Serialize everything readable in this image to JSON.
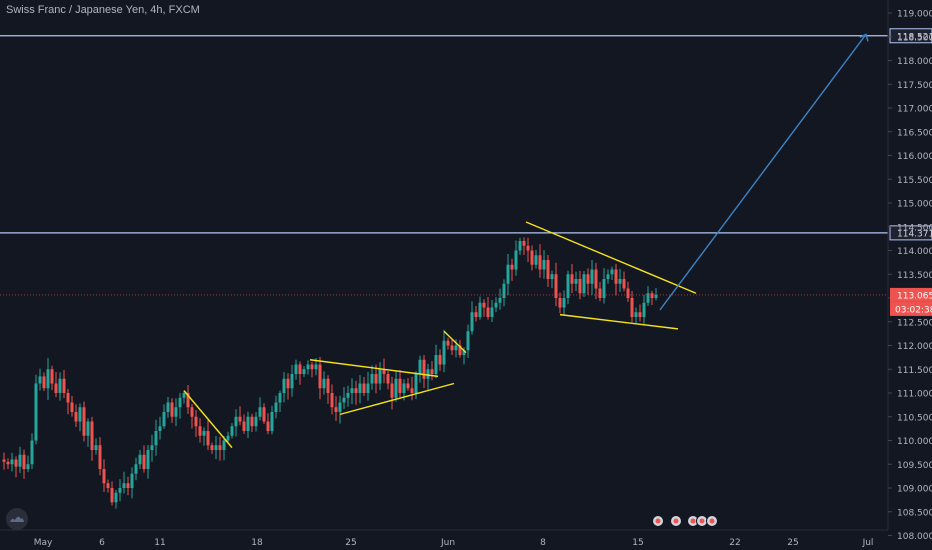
{
  "header": {
    "title": "Swiss Franc / Japanese Yen, 4h, FXCM"
  },
  "badges": {
    "price": "113.065",
    "countdown": "03:02:38"
  },
  "colors": {
    "bg": "#131722",
    "up": "#26a69a",
    "down": "#ef5350",
    "hline": "#b2c5f2",
    "trend": "#f5e31a",
    "arrow": "#3d85c6",
    "axis_text": "#b2b5be",
    "price_badge": "#ef5350"
  },
  "chart_data": {
    "type": "candlestick",
    "title": "Swiss Franc / Japanese Yen, 4h, FXCM",
    "xlabel": "",
    "ylabel": "",
    "x_ticks": [
      "May",
      "6",
      "11",
      "18",
      "25",
      "Jun",
      "8",
      "15",
      "22",
      "25",
      "Jul"
    ],
    "y_ticks": [
      "119.000",
      "118.500",
      "118.000",
      "117.500",
      "117.000",
      "116.500",
      "116.000",
      "115.500",
      "115.000",
      "114.500",
      "114.000",
      "113.500",
      "113.000",
      "112.500",
      "112.000",
      "111.500",
      "111.000",
      "110.500",
      "110.000",
      "109.500",
      "109.000",
      "108.500",
      "108.000"
    ],
    "ylim": [
      108.0,
      119.2
    ],
    "horizontal_levels": [
      {
        "label": "118.521",
        "value": 118.521
      },
      {
        "label": "114.371",
        "value": 114.371
      }
    ],
    "last_price": 113.065,
    "close_path": [
      [
        0,
        109.6
      ],
      [
        4,
        109.55
      ],
      [
        8,
        109.5
      ],
      [
        12,
        109.6
      ],
      [
        16,
        109.45
      ],
      [
        20,
        109.7
      ],
      [
        24,
        109.4
      ],
      [
        28,
        109.5
      ],
      [
        32,
        110.0
      ],
      [
        36,
        111.2
      ],
      [
        40,
        111.35
      ],
      [
        44,
        111.1
      ],
      [
        48,
        111.5
      ],
      [
        52,
        111.2
      ],
      [
        56,
        111.0
      ],
      [
        60,
        111.3
      ],
      [
        64,
        111.0
      ],
      [
        68,
        110.8
      ],
      [
        72,
        110.6
      ],
      [
        76,
        110.4
      ],
      [
        80,
        110.7
      ],
      [
        84,
        110.1
      ],
      [
        88,
        110.4
      ],
      [
        92,
        109.8
      ],
      [
        96,
        109.9
      ],
      [
        100,
        109.4
      ],
      [
        104,
        109.1
      ],
      [
        108,
        109.0
      ],
      [
        112,
        108.7
      ],
      [
        116,
        108.9
      ],
      [
        120,
        109.0
      ],
      [
        124,
        109.1
      ],
      [
        128,
        109.0
      ],
      [
        132,
        109.3
      ],
      [
        136,
        109.5
      ],
      [
        140,
        109.7
      ],
      [
        144,
        109.4
      ],
      [
        148,
        109.8
      ],
      [
        152,
        109.9
      ],
      [
        156,
        110.2
      ],
      [
        160,
        110.3
      ],
      [
        164,
        110.6
      ],
      [
        168,
        110.8
      ],
      [
        172,
        110.5
      ],
      [
        176,
        110.7
      ],
      [
        180,
        110.9
      ],
      [
        184,
        111.0
      ],
      [
        188,
        110.7
      ],
      [
        192,
        110.5
      ],
      [
        196,
        110.3
      ],
      [
        200,
        110.1
      ],
      [
        204,
        110.2
      ],
      [
        208,
        109.9
      ],
      [
        212,
        109.8
      ],
      [
        216,
        109.9
      ],
      [
        220,
        109.8
      ],
      [
        224,
        110.0
      ],
      [
        228,
        110.1
      ],
      [
        232,
        110.3
      ],
      [
        236,
        110.5
      ],
      [
        240,
        110.4
      ],
      [
        244,
        110.2
      ],
      [
        248,
        110.5
      ],
      [
        252,
        110.3
      ],
      [
        256,
        110.5
      ],
      [
        260,
        110.7
      ],
      [
        264,
        110.4
      ],
      [
        268,
        110.2
      ],
      [
        272,
        110.6
      ],
      [
        276,
        110.8
      ],
      [
        280,
        111.0
      ],
      [
        284,
        111.3
      ],
      [
        288,
        111.1
      ],
      [
        292,
        111.4
      ],
      [
        296,
        111.6
      ],
      [
        300,
        111.4
      ],
      [
        304,
        111.5
      ],
      [
        308,
        111.6
      ],
      [
        312,
        111.5
      ],
      [
        316,
        111.6
      ],
      [
        320,
        111.1
      ],
      [
        324,
        111.3
      ],
      [
        328,
        111.0
      ],
      [
        332,
        110.7
      ],
      [
        336,
        110.6
      ],
      [
        340,
        110.8
      ],
      [
        344,
        110.9
      ],
      [
        348,
        111.0
      ],
      [
        352,
        111.1
      ],
      [
        356,
        111.0
      ],
      [
        360,
        111.2
      ],
      [
        364,
        111.0
      ],
      [
        368,
        111.2
      ],
      [
        372,
        111.4
      ],
      [
        376,
        111.2
      ],
      [
        380,
        111.5
      ],
      [
        384,
        111.4
      ],
      [
        388,
        111.2
      ],
      [
        392,
        110.9
      ],
      [
        396,
        111.3
      ],
      [
        400,
        111.0
      ],
      [
        404,
        111.2
      ],
      [
        408,
        111.1
      ],
      [
        412,
        111.0
      ],
      [
        416,
        111.4
      ],
      [
        420,
        111.7
      ],
      [
        424,
        111.3
      ],
      [
        428,
        111.5
      ],
      [
        432,
        111.4
      ],
      [
        436,
        111.8
      ],
      [
        440,
        111.6
      ],
      [
        444,
        112.1
      ],
      [
        448,
        112.0
      ],
      [
        452,
        111.9
      ],
      [
        456,
        112.0
      ],
      [
        460,
        111.8
      ],
      [
        464,
        111.9
      ],
      [
        468,
        112.3
      ],
      [
        472,
        112.7
      ],
      [
        476,
        112.6
      ],
      [
        480,
        112.9
      ],
      [
        484,
        112.8
      ],
      [
        488,
        112.6
      ],
      [
        492,
        112.8
      ],
      [
        496,
        112.9
      ],
      [
        500,
        113.0
      ],
      [
        504,
        113.3
      ],
      [
        508,
        113.7
      ],
      [
        512,
        113.6
      ],
      [
        516,
        114.0
      ],
      [
        520,
        114.2
      ],
      [
        524,
        114.1
      ],
      [
        528,
        114.0
      ],
      [
        532,
        113.7
      ],
      [
        536,
        113.9
      ],
      [
        540,
        113.6
      ],
      [
        544,
        113.8
      ],
      [
        548,
        113.4
      ],
      [
        552,
        113.5
      ],
      [
        556,
        113.0
      ],
      [
        560,
        112.8
      ],
      [
        564,
        113.0
      ],
      [
        568,
        113.5
      ],
      [
        572,
        113.3
      ],
      [
        576,
        113.4
      ],
      [
        580,
        113.1
      ],
      [
        584,
        113.5
      ],
      [
        588,
        113.3
      ],
      [
        592,
        113.6
      ],
      [
        596,
        113.2
      ],
      [
        600,
        113.0
      ],
      [
        604,
        113.4
      ],
      [
        608,
        113.5
      ],
      [
        612,
        113.6
      ],
      [
        616,
        113.3
      ],
      [
        620,
        113.4
      ],
      [
        624,
        113.2
      ],
      [
        628,
        113.0
      ],
      [
        632,
        112.6
      ],
      [
        636,
        112.7
      ],
      [
        640,
        112.6
      ],
      [
        644,
        112.9
      ],
      [
        648,
        113.1
      ],
      [
        652,
        113.0
      ],
      [
        656,
        113.065
      ]
    ],
    "trendlines": [
      {
        "from": [
          184,
          111.05
        ],
        "to": [
          232,
          109.85
        ]
      },
      {
        "from": [
          310,
          111.7
        ],
        "to": [
          438,
          111.35
        ]
      },
      {
        "from": [
          340,
          110.55
        ],
        "to": [
          454,
          111.2
        ]
      },
      {
        "from": [
          444,
          112.3
        ],
        "to": [
          466,
          111.85
        ]
      },
      {
        "from": [
          526,
          114.6
        ],
        "to": [
          696,
          113.1
        ]
      },
      {
        "from": [
          560,
          112.65
        ],
        "to": [
          678,
          112.35
        ]
      }
    ],
    "arrow": {
      "from": [
        660,
        112.75
      ],
      "to": [
        866,
        118.55
      ]
    }
  }
}
